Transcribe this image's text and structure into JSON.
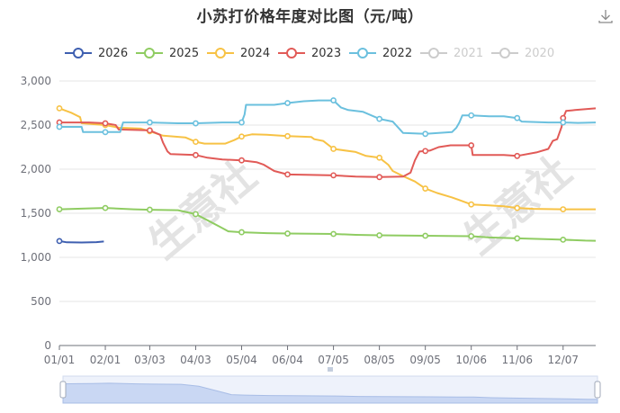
{
  "header": {
    "title": "小苏打价格年度对比图（元/吨）",
    "download_icon": "download-icon"
  },
  "watermark": "生意社",
  "colors": {
    "2026": "#3e5fb0",
    "2025": "#8fcc62",
    "2024": "#f7c245",
    "2023": "#e15a57",
    "2022": "#6bc0de",
    "2021": "#d6d6d6",
    "2020": "#d6d6d6",
    "grid": "#e6e6e6",
    "axis": "#6e7079",
    "slider_fill": "#c9d7f3",
    "slider_bg": "#eef2fb"
  },
  "chart_data": {
    "type": "line",
    "title": "小苏打价格年度对比图（元/吨）",
    "ylim": [
      0,
      3000
    ],
    "yticks": [
      "3,000",
      "2,500",
      "2,000",
      "1,500",
      "1,000",
      "500",
      "0"
    ],
    "ytick_values": [
      3000,
      2500,
      2000,
      1500,
      1000,
      500,
      0
    ],
    "xlim_days": [
      0,
      362
    ],
    "xticks": [
      "01/01",
      "02/01",
      "03/03",
      "04/03",
      "05/04",
      "06/04",
      "07/05",
      "08/05",
      "09/05",
      "10/06",
      "11/06",
      "12/07"
    ],
    "xtick_days": [
      0,
      31,
      61,
      92,
      123,
      154,
      185,
      216,
      247,
      278,
      309,
      340
    ],
    "grid": true,
    "legend_position": "top-left",
    "series": [
      {
        "name": "2026",
        "visible": true,
        "points": [
          [
            0,
            1185
          ],
          [
            5,
            1170
          ],
          [
            15,
            1168
          ],
          [
            25,
            1172
          ],
          [
            30,
            1180
          ]
        ]
      },
      {
        "name": "2025",
        "visible": true,
        "points": [
          [
            0,
            1545
          ],
          [
            10,
            1550
          ],
          [
            20,
            1555
          ],
          [
            31,
            1560
          ],
          [
            50,
            1545
          ],
          [
            61,
            1540
          ],
          [
            80,
            1535
          ],
          [
            92,
            1490
          ],
          [
            100,
            1420
          ],
          [
            108,
            1350
          ],
          [
            114,
            1295
          ],
          [
            123,
            1285
          ],
          [
            140,
            1275
          ],
          [
            154,
            1270
          ],
          [
            185,
            1265
          ],
          [
            200,
            1255
          ],
          [
            216,
            1250
          ],
          [
            247,
            1245
          ],
          [
            278,
            1240
          ],
          [
            290,
            1225
          ],
          [
            309,
            1215
          ],
          [
            330,
            1205
          ],
          [
            340,
            1200
          ],
          [
            355,
            1190
          ],
          [
            362,
            1188
          ]
        ]
      },
      {
        "name": "2024",
        "visible": true,
        "points": [
          [
            0,
            2690
          ],
          [
            8,
            2640
          ],
          [
            14,
            2590
          ],
          [
            15,
            2520
          ],
          [
            31,
            2500
          ],
          [
            40,
            2470
          ],
          [
            55,
            2460
          ],
          [
            61,
            2430
          ],
          [
            70,
            2380
          ],
          [
            85,
            2360
          ],
          [
            92,
            2310
          ],
          [
            98,
            2290
          ],
          [
            112,
            2290
          ],
          [
            118,
            2330
          ],
          [
            123,
            2370
          ],
          [
            130,
            2395
          ],
          [
            140,
            2390
          ],
          [
            154,
            2375
          ],
          [
            170,
            2365
          ],
          [
            172,
            2340
          ],
          [
            178,
            2320
          ],
          [
            185,
            2230
          ],
          [
            200,
            2195
          ],
          [
            207,
            2150
          ],
          [
            216,
            2130
          ],
          [
            222,
            2050
          ],
          [
            225,
            1980
          ],
          [
            232,
            1920
          ],
          [
            240,
            1860
          ],
          [
            247,
            1780
          ],
          [
            255,
            1730
          ],
          [
            265,
            1680
          ],
          [
            278,
            1600
          ],
          [
            290,
            1590
          ],
          [
            300,
            1580
          ],
          [
            309,
            1560
          ],
          [
            320,
            1550
          ],
          [
            340,
            1545
          ],
          [
            362,
            1545
          ]
        ]
      },
      {
        "name": "2023",
        "visible": true,
        "points": [
          [
            0,
            2530
          ],
          [
            20,
            2530
          ],
          [
            31,
            2520
          ],
          [
            38,
            2500
          ],
          [
            40,
            2450
          ],
          [
            61,
            2440
          ],
          [
            68,
            2390
          ],
          [
            70,
            2300
          ],
          [
            73,
            2200
          ],
          [
            75,
            2170
          ],
          [
            92,
            2160
          ],
          [
            100,
            2130
          ],
          [
            110,
            2110
          ],
          [
            123,
            2100
          ],
          [
            133,
            2080
          ],
          [
            138,
            2050
          ],
          [
            145,
            1980
          ],
          [
            154,
            1940
          ],
          [
            170,
            1935
          ],
          [
            185,
            1930
          ],
          [
            200,
            1915
          ],
          [
            216,
            1910
          ],
          [
            232,
            1915
          ],
          [
            237,
            1960
          ],
          [
            240,
            2100
          ],
          [
            243,
            2200
          ],
          [
            250,
            2210
          ],
          [
            256,
            2250
          ],
          [
            264,
            2270
          ],
          [
            278,
            2270
          ],
          [
            279,
            2160
          ],
          [
            300,
            2160
          ],
          [
            309,
            2150
          ],
          [
            322,
            2190
          ],
          [
            330,
            2230
          ],
          [
            333,
            2320
          ],
          [
            336,
            2340
          ],
          [
            339,
            2480
          ],
          [
            340,
            2580
          ],
          [
            342,
            2660
          ],
          [
            348,
            2670
          ],
          [
            362,
            2690
          ]
        ]
      },
      {
        "name": "2022",
        "visible": true,
        "points": [
          [
            0,
            2480
          ],
          [
            15,
            2480
          ],
          [
            16,
            2420
          ],
          [
            31,
            2420
          ],
          [
            41,
            2420
          ],
          [
            43,
            2530
          ],
          [
            55,
            2530
          ],
          [
            61,
            2530
          ],
          [
            80,
            2520
          ],
          [
            92,
            2520
          ],
          [
            110,
            2530
          ],
          [
            123,
            2530
          ],
          [
            125,
            2620
          ],
          [
            126,
            2730
          ],
          [
            145,
            2730
          ],
          [
            154,
            2750
          ],
          [
            165,
            2770
          ],
          [
            175,
            2780
          ],
          [
            185,
            2780
          ],
          [
            190,
            2700
          ],
          [
            195,
            2670
          ],
          [
            205,
            2650
          ],
          [
            216,
            2570
          ],
          [
            225,
            2540
          ],
          [
            232,
            2410
          ],
          [
            247,
            2400
          ],
          [
            265,
            2420
          ],
          [
            268,
            2470
          ],
          [
            270,
            2530
          ],
          [
            272,
            2610
          ],
          [
            278,
            2610
          ],
          [
            290,
            2600
          ],
          [
            300,
            2600
          ],
          [
            309,
            2580
          ],
          [
            312,
            2540
          ],
          [
            330,
            2530
          ],
          [
            340,
            2530
          ],
          [
            350,
            2525
          ],
          [
            362,
            2530
          ]
        ]
      },
      {
        "name": "2021",
        "visible": false,
        "points": []
      },
      {
        "name": "2020",
        "visible": false,
        "points": []
      }
    ]
  }
}
